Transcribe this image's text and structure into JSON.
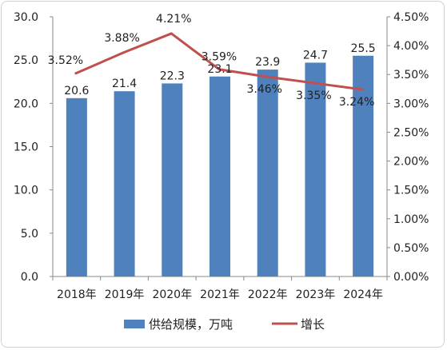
{
  "chart_data": {
    "type": "bar+line",
    "categories": [
      "2018年",
      "2019年",
      "2020年",
      "2021年",
      "2022年",
      "2023年",
      "2024年"
    ],
    "series": [
      {
        "name": "供给规模，万吨",
        "type": "bar",
        "axis": "left",
        "values": [
          20.6,
          21.4,
          22.3,
          23.1,
          23.9,
          24.7,
          25.5
        ],
        "labels": [
          "20.6",
          "21.4",
          "22.3",
          "23.1",
          "23.9",
          "24.7",
          "25.5"
        ],
        "color": "#4f81bd"
      },
      {
        "name": "增长",
        "type": "line",
        "axis": "right",
        "values": [
          3.52,
          3.88,
          4.21,
          3.59,
          3.46,
          3.35,
          3.24
        ],
        "labels": [
          "3.52%",
          "3.88%",
          "4.21%",
          "3.59%",
          "3.46%",
          "3.35%",
          "3.24%"
        ],
        "color": "#c0504d"
      }
    ],
    "y_left": {
      "ylim": [
        0,
        30
      ],
      "ticks": [
        "0.0",
        "5.0",
        "10.0",
        "15.0",
        "20.0",
        "25.0",
        "30.0"
      ]
    },
    "y_right": {
      "ylim": [
        0,
        4.5
      ],
      "ticks": [
        "0.00%",
        "0.50%",
        "1.00%",
        "1.50%",
        "2.00%",
        "2.50%",
        "3.00%",
        "3.50%",
        "4.00%",
        "4.50%"
      ]
    },
    "grid": false,
    "legend_position": "bottom"
  }
}
